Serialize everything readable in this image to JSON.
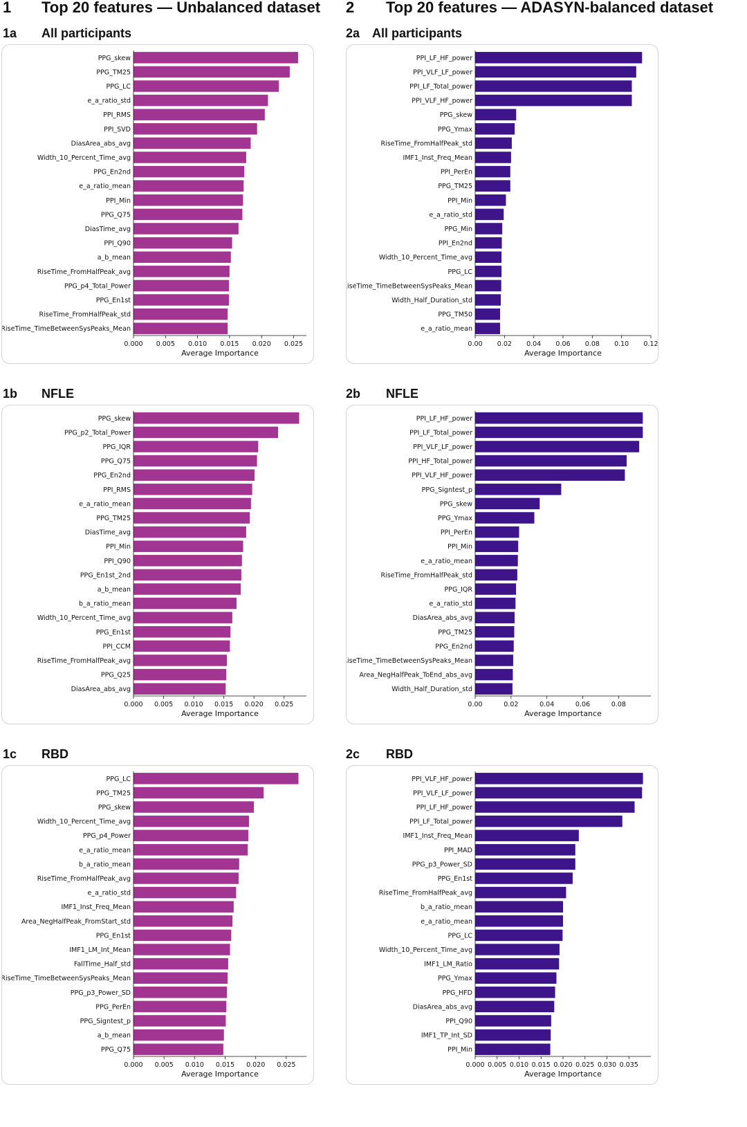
{
  "columns": [
    {
      "number": "1",
      "title": "Top 20 features — Unbalanced dataset"
    },
    {
      "number": "2",
      "title": "Top 20 features — ADASYN-balanced dataset"
    }
  ],
  "panels": [
    {
      "label": "1a",
      "title": "All participants"
    },
    {
      "label": "2a",
      "title": "All participants"
    },
    {
      "label": "1b",
      "title": "NFLE"
    },
    {
      "label": "2b",
      "title": "NFLE"
    },
    {
      "label": "1c",
      "title": "RBD"
    },
    {
      "label": "2c",
      "title": "RBD"
    }
  ],
  "chart_data": [
    {
      "type": "bar",
      "orientation": "horizontal",
      "color": "#a33592",
      "xlabel": "Average Importance",
      "xlim": [
        0,
        0.027
      ],
      "xticks": [
        "0.000",
        "0.005",
        "0.010",
        "0.015",
        "0.020",
        "0.025"
      ],
      "xtick_values": [
        0,
        0.005,
        0.01,
        0.015,
        0.02,
        0.025
      ],
      "categories": [
        "PPG_skew",
        "PPG_TM25",
        "PPG_LC",
        "e_a_ratio_std",
        "PPI_RMS",
        "PPI_SVD",
        "DiasArea_abs_avg",
        "Width_10_Percent_Time_avg",
        "PPG_En2nd",
        "e_a_ratio_mean",
        "PPI_Min",
        "PPG_Q75",
        "DiasTime_avg",
        "PPI_Q90",
        "a_b_mean",
        "RiseTime_FromHalfPeak_avg",
        "PPG_p4_Total_Power",
        "PPG_En1st",
        "RiseTime_FromHalfPeak_std",
        "RiseTime_TimeBetweenSysPeaks_Mean"
      ],
      "values": [
        0.0257,
        0.0244,
        0.0227,
        0.021,
        0.0205,
        0.0193,
        0.0183,
        0.0176,
        0.0173,
        0.0172,
        0.0171,
        0.017,
        0.0164,
        0.0154,
        0.0152,
        0.015,
        0.0149,
        0.0149,
        0.0147,
        0.0147
      ]
    },
    {
      "type": "bar",
      "orientation": "horizontal",
      "color": "#3d1489",
      "xlabel": "Average Importance",
      "xlim": [
        0,
        0.12
      ],
      "xticks": [
        "0.00",
        "0.02",
        "0.04",
        "0.06",
        "0.08",
        "0.10",
        "0.12"
      ],
      "xtick_values": [
        0,
        0.02,
        0.04,
        0.06,
        0.08,
        0.1,
        0.12
      ],
      "categories": [
        "PPI_LF_HF_power",
        "PPI_VLF_LF_power",
        "PPI_LF_Total_power",
        "PPI_VLF_HF_power",
        "PPG_skew",
        "PPG_Ymax",
        "RiseTime_FromHalfPeak_std",
        "IMF1_Inst_Freq_Mean",
        "PPI_PerEn",
        "PPG_TM25",
        "PPI_Min",
        "e_a_ratio_std",
        "PPG_Min",
        "PPI_En2nd",
        "Width_10_Percent_Time_avg",
        "PPG_LC",
        "RiseTime_TimeBetweenSysPeaks_Mean",
        "Width_Half_Duration_std",
        "PPG_TM50",
        "e_a_ratio_mean"
      ],
      "values": [
        0.114,
        0.11,
        0.107,
        0.107,
        0.028,
        0.027,
        0.025,
        0.0245,
        0.024,
        0.024,
        0.021,
        0.0195,
        0.0185,
        0.0182,
        0.018,
        0.018,
        0.0178,
        0.0175,
        0.017,
        0.017
      ]
    },
    {
      "type": "bar",
      "orientation": "horizontal",
      "color": "#a33592",
      "xlabel": "Average Importance",
      "xlim": [
        0,
        0.0287
      ],
      "xticks": [
        "0.000",
        "0.005",
        "0.010",
        "0.015",
        "0.020",
        "0.025"
      ],
      "xtick_values": [
        0,
        0.005,
        0.01,
        0.015,
        0.02,
        0.025
      ],
      "categories": [
        "PPG_skew",
        "PPG_p2_Total_Power",
        "PPG_IQR",
        "PPG_Q75",
        "PPG_En2nd",
        "PPI_RMS",
        "e_a_ratio_mean",
        "PPG_TM25",
        "DiasTime_avg",
        "PPI_Min",
        "PPI_Q90",
        "PPG_En1st_2nd",
        "a_b_mean",
        "b_a_ratio_mean",
        "Width_10_Percent_Time_avg",
        "PPG_En1st",
        "PPI_CCM",
        "RiseTime_FromHalfPeak_avg",
        "PPG_Q25",
        "DiasArea_abs_avg"
      ],
      "values": [
        0.0275,
        0.024,
        0.0207,
        0.0205,
        0.0201,
        0.0197,
        0.0195,
        0.0193,
        0.0187,
        0.0182,
        0.018,
        0.0179,
        0.0178,
        0.0171,
        0.0164,
        0.0161,
        0.016,
        0.0155,
        0.0154,
        0.0153
      ]
    },
    {
      "type": "bar",
      "orientation": "horizontal",
      "color": "#3d1489",
      "xlabel": "Average Importance",
      "xlim": [
        0,
        0.098
      ],
      "xticks": [
        "0.00",
        "0.02",
        "0.04",
        "0.06",
        "0.08"
      ],
      "xtick_values": [
        0,
        0.02,
        0.04,
        0.06,
        0.08
      ],
      "categories": [
        "PPI_LF_HF_power",
        "PPI_LF_Total_power",
        "PPI_VLF_LF_power",
        "PPI_HF_Total_power",
        "PPI_VLF_HF_power",
        "PPG_Signtest_p",
        "PPG_skew",
        "PPG_Ymax",
        "PPI_PerEn",
        "PPI_Min",
        "e_a_ratio_mean",
        "RiseTime_FromHalfPeak_std",
        "PPG_IQR",
        "e_a_ratio_std",
        "DiasArea_abs_avg",
        "PPG_TM25",
        "PPG_En2nd",
        "RiseTime_TimeBetweenSysPeaks_Mean",
        "Area_NegHalfPeak_ToEnd_abs_avg",
        "Width_Half_Duration_std"
      ],
      "values": [
        0.0935,
        0.0935,
        0.0915,
        0.0845,
        0.0835,
        0.048,
        0.036,
        0.033,
        0.0245,
        0.024,
        0.0238,
        0.0235,
        0.0228,
        0.0225,
        0.022,
        0.0218,
        0.0215,
        0.0212,
        0.021,
        0.0208
      ]
    },
    {
      "type": "bar",
      "orientation": "horizontal",
      "color": "#a33592",
      "xlabel": "Average Importance",
      "xlim": [
        0,
        0.0283
      ],
      "xticks": [
        "0.000",
        "0.005",
        "0.010",
        "0.015",
        "0.020",
        "0.025"
      ],
      "xtick_values": [
        0,
        0.005,
        0.01,
        0.015,
        0.02,
        0.025
      ],
      "categories": [
        "PPG_LC",
        "PPG_TM25",
        "PPG_skew",
        "Width_10_Percent_Time_avg",
        "PPG_p4_Power",
        "e_a_ratio_mean",
        "b_a_ratio_mean",
        "RiseTime_FromHalfPeak_avg",
        "e_a_ratio_std",
        "IMF1_Inst_Freq_Mean",
        "Area_NegHalfPeak_FromStart_std",
        "PPG_En1st",
        "IMF1_LM_Int_Mean",
        "FallTime_Half_std",
        "RiseTime_TimeBetweenSysPeaks_Mean",
        "PPG_p3_Power_SD",
        "PPG_PerEn",
        "PPG_Signtest_p",
        "a_b_mean",
        "PPG_Q75"
      ],
      "values": [
        0.027,
        0.0213,
        0.0197,
        0.0189,
        0.0188,
        0.0187,
        0.0173,
        0.0172,
        0.0168,
        0.0164,
        0.0162,
        0.016,
        0.0158,
        0.0155,
        0.0154,
        0.0153,
        0.0152,
        0.0151,
        0.0148,
        0.0147
      ]
    },
    {
      "type": "bar",
      "orientation": "horizontal",
      "color": "#3d1489",
      "xlabel": "Average Importance",
      "xlim": [
        0,
        0.04
      ],
      "xticks": [
        "0.000",
        "0.005",
        "0.010",
        "0.015",
        "0.020",
        "0.025",
        "0.030",
        "0.035"
      ],
      "xtick_values": [
        0,
        0.005,
        0.01,
        0.015,
        0.02,
        0.025,
        0.03,
        0.035
      ],
      "categories": [
        "PPI_VLF_HF_power",
        "PPI_VLF_LF_power",
        "PPI_LF_HF_power",
        "PPI_LF_Total_power",
        "IMF1_Inst_Freq_Mean",
        "PPI_MAD",
        "PPG_p3_Power_SD",
        "PPG_En1st",
        "RiseTime_FromHalfPeak_avg",
        "b_a_ratio_mean",
        "e_a_ratio_mean",
        "PPG_LC",
        "Width_10_Percent_Time_avg",
        "IMF1_LM_Ratio",
        "PPG_Ymax",
        "PPG_HFD",
        "DiasArea_abs_avg",
        "PPI_Q90",
        "IMF1_TP_Int_SD",
        "PPI_Min"
      ],
      "values": [
        0.0382,
        0.038,
        0.0363,
        0.0335,
        0.0236,
        0.0228,
        0.0228,
        0.0222,
        0.0207,
        0.02,
        0.02,
        0.0199,
        0.0192,
        0.0191,
        0.0185,
        0.0182,
        0.018,
        0.0173,
        0.0172,
        0.0171
      ]
    }
  ]
}
